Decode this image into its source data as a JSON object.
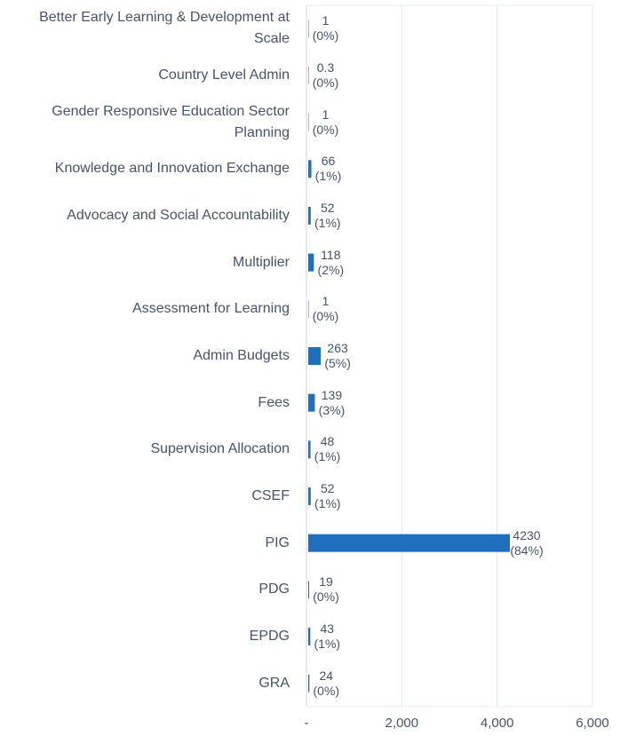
{
  "chart_data": {
    "type": "barh",
    "categories": [
      "Better Early Learning & Development at Scale",
      "Country Level Admin",
      "Gender Responsive Education Sector Planning",
      "Knowledge and Innovation Exchange",
      "Advocacy and Social Accountability",
      "Multiplier",
      "Assessment for Learning",
      "Admin Budgets",
      "Fees",
      "Supervision Allocation",
      "CSEF",
      "PIG",
      "PDG",
      "EPDG",
      "GRA"
    ],
    "values": [
      1,
      0.3,
      1,
      66,
      52,
      118,
      1,
      263,
      139,
      48,
      52,
      4230,
      19,
      43,
      24
    ],
    "share_labels": [
      "(0%)",
      "(0%)",
      "(0%)",
      "(1%)",
      "(1%)",
      "(2%)",
      "(0%)",
      "(5%)",
      "(3%)",
      "(1%)",
      "(1%)",
      "(84%)",
      "(0%)",
      "(1%)",
      "(0%)"
    ],
    "color": "#1f6fbf",
    "xlim": [
      0,
      6000
    ],
    "xticks": [
      {
        "value": 0,
        "label": "-"
      },
      {
        "value": 2000,
        "label": "2,000"
      },
      {
        "value": 4000,
        "label": "4,000"
      },
      {
        "value": 6000,
        "label": "6,000"
      }
    ],
    "grid": true
  }
}
